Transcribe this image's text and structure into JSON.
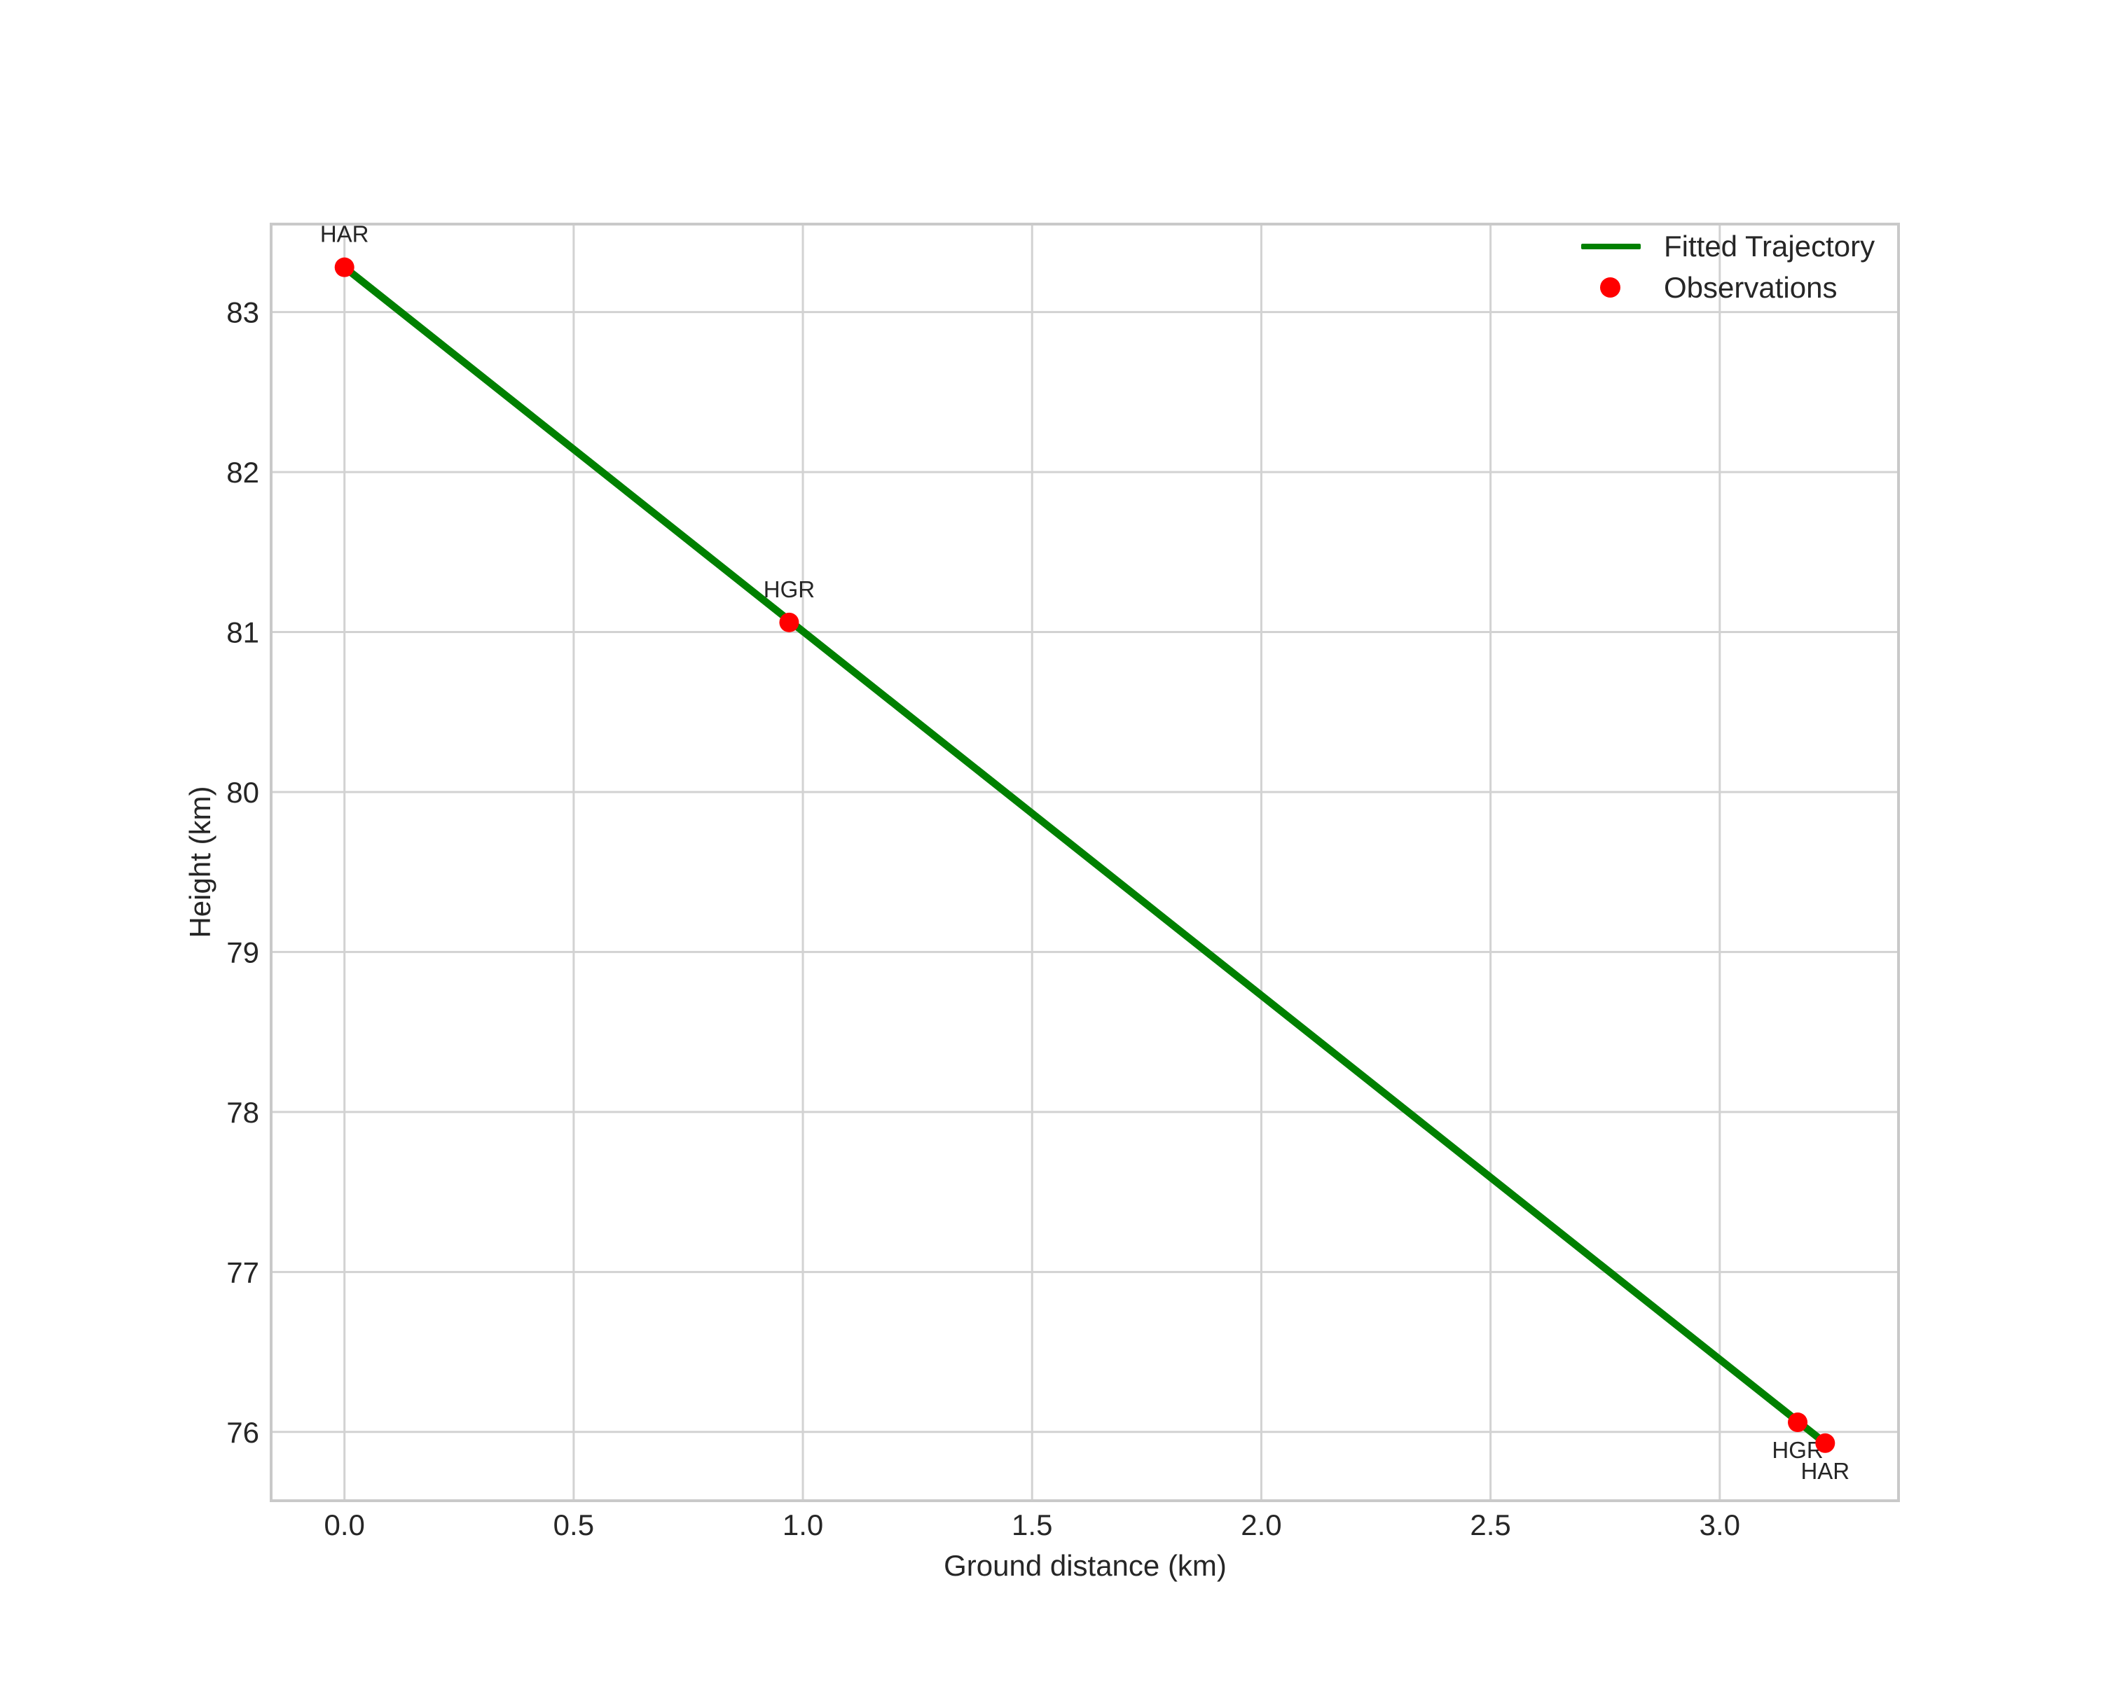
{
  "figure": {
    "background": "#ffffff",
    "text_color": "#262626",
    "grid_color": "#d2d2d2",
    "spine_color": "#c9c9c9"
  },
  "chart_data": {
    "type": "line+scatter",
    "title": "",
    "xlabel": "Ground distance (km)",
    "ylabel": "Height (km)",
    "xlim": [
      -0.16,
      3.39
    ],
    "ylim": [
      75.57,
      83.55
    ],
    "grid": true,
    "legend_position": "upper right",
    "xticks": [
      {
        "value": 0.0,
        "label": "0.0"
      },
      {
        "value": 0.5,
        "label": "0.5"
      },
      {
        "value": 1.0,
        "label": "1.0"
      },
      {
        "value": 1.5,
        "label": "1.5"
      },
      {
        "value": 2.0,
        "label": "2.0"
      },
      {
        "value": 2.5,
        "label": "2.5"
      },
      {
        "value": 3.0,
        "label": "3.0"
      }
    ],
    "yticks": [
      {
        "value": 76,
        "label": "76"
      },
      {
        "value": 77,
        "label": "77"
      },
      {
        "value": 78,
        "label": "78"
      },
      {
        "value": 79,
        "label": "79"
      },
      {
        "value": 80,
        "label": "80"
      },
      {
        "value": 81,
        "label": "81"
      },
      {
        "value": 82,
        "label": "82"
      },
      {
        "value": 83,
        "label": "83"
      }
    ],
    "series": [
      {
        "name": "Fitted Trajectory",
        "type": "line",
        "color": "#008000",
        "points": [
          {
            "x": 0.0,
            "y": 83.28
          },
          {
            "x": 3.23,
            "y": 75.93
          }
        ]
      },
      {
        "name": "Observations",
        "type": "scatter",
        "color": "#ff0000",
        "points": [
          {
            "x": 0.0,
            "y": 83.28,
            "label": "HAR",
            "label_pos": "above"
          },
          {
            "x": 0.97,
            "y": 81.06,
            "label": "HGR",
            "label_pos": "above"
          },
          {
            "x": 3.17,
            "y": 76.06,
            "label": "HGR",
            "label_pos": "below"
          },
          {
            "x": 3.23,
            "y": 75.93,
            "label": "HAR",
            "label_pos": "below"
          }
        ]
      }
    ],
    "legend": {
      "entries": [
        {
          "label": "Fitted Trajectory",
          "marker": "line",
          "color": "#008000"
        },
        {
          "label": "Observations",
          "marker": "dot",
          "color": "#ff0000"
        }
      ]
    }
  }
}
